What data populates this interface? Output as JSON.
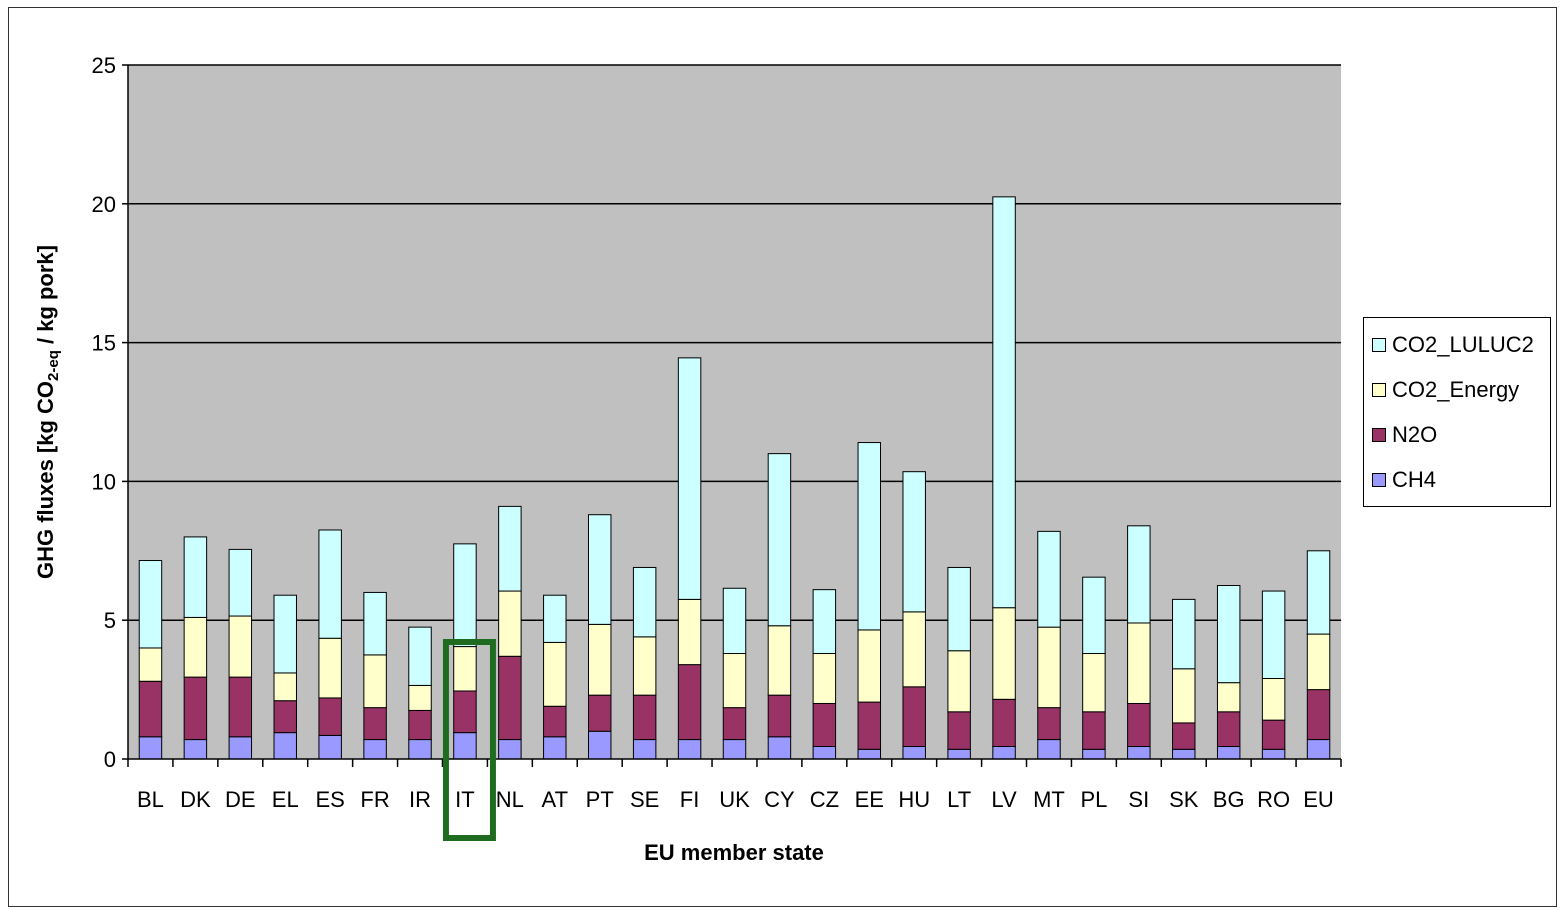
{
  "chart_data": {
    "type": "bar",
    "stacked": true,
    "xlabel": "EU member state",
    "ylabel": "GHG fluxes [kg CO2-eq / kg pork]",
    "ylim": [
      0,
      25
    ],
    "yticks": [
      0,
      5,
      10,
      15,
      20,
      25
    ],
    "grid": true,
    "legend_position": "right",
    "categories": [
      "BL",
      "DK",
      "DE",
      "EL",
      "ES",
      "FR",
      "IR",
      "IT",
      "NL",
      "AT",
      "PT",
      "SE",
      "FI",
      "UK",
      "CY",
      "CZ",
      "EE",
      "HU",
      "LT",
      "LV",
      "MT",
      "PL",
      "SI",
      "SK",
      "BG",
      "RO",
      "EU"
    ],
    "series": [
      {
        "name": "CH4",
        "color": "#9999ff",
        "values": [
          0.8,
          0.7,
          0.8,
          0.95,
          0.85,
          0.7,
          0.7,
          0.95,
          0.7,
          0.8,
          1.0,
          0.7,
          0.7,
          0.7,
          0.8,
          0.45,
          0.35,
          0.45,
          0.35,
          0.45,
          0.7,
          0.35,
          0.45,
          0.35,
          0.45,
          0.35,
          0.7
        ]
      },
      {
        "name": "N2O",
        "color": "#993366",
        "values": [
          2.0,
          2.25,
          2.15,
          1.15,
          1.35,
          1.15,
          1.05,
          1.5,
          3.0,
          1.1,
          1.3,
          1.6,
          2.7,
          1.15,
          1.5,
          1.55,
          1.7,
          2.15,
          1.35,
          1.7,
          1.15,
          1.35,
          1.55,
          0.95,
          1.25,
          1.05,
          1.8
        ]
      },
      {
        "name": "CO2_Energy",
        "color": "#ffffcc",
        "values": [
          1.2,
          2.15,
          2.2,
          1.0,
          2.15,
          1.9,
          0.9,
          1.6,
          2.35,
          2.3,
          2.55,
          2.1,
          2.35,
          1.95,
          2.5,
          1.8,
          2.6,
          2.7,
          2.2,
          3.3,
          2.9,
          2.1,
          2.9,
          1.95,
          1.05,
          1.5,
          2.0
        ]
      },
      {
        "name": "CO2_LULUC2",
        "color": "#ccffff",
        "values": [
          3.15,
          2.9,
          2.4,
          2.8,
          3.9,
          2.25,
          2.1,
          3.7,
          3.05,
          1.7,
          3.95,
          2.5,
          8.7,
          2.35,
          6.2,
          2.3,
          6.75,
          5.05,
          3.0,
          14.8,
          3.45,
          2.75,
          3.5,
          2.5,
          3.5,
          3.15,
          3.0
        ]
      }
    ],
    "highlight": {
      "category": "IT",
      "color": "#1f6b1f"
    }
  },
  "legend": {
    "items": [
      "CO2_LULUC2",
      "CO2_Energy",
      "N2O",
      "CH4"
    ]
  }
}
